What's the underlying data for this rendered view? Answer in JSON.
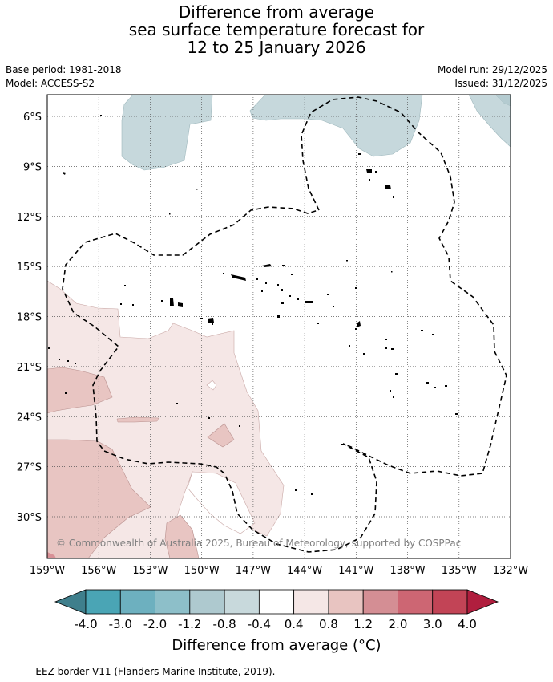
{
  "title": {
    "line1": "Difference from average",
    "line2": "sea surface temperature forecast for",
    "line3": "12 to 25 January 2026"
  },
  "meta": {
    "base_period": "Base period: 1981-2018",
    "model": "Model: ACCESS-S2",
    "model_run": "Model run: 29/12/2025",
    "issued": "Issued: 31/12/2025"
  },
  "map": {
    "lon_range": [
      -159,
      -132
    ],
    "lat_range": [
      -32.5,
      -4.7
    ],
    "lon_ticks": [
      -159,
      -156,
      -153,
      -150,
      -147,
      -144,
      -141,
      -138,
      -135,
      -132
    ],
    "lon_tick_labels": [
      "159°W",
      "156°W",
      "153°W",
      "150°W",
      "147°W",
      "144°W",
      "141°W",
      "138°W",
      "135°W",
      "132°W"
    ],
    "lat_ticks": [
      -6,
      -9,
      -12,
      -15,
      -18,
      -21,
      -24,
      -27,
      -30
    ],
    "lat_tick_labels": [
      "6°S",
      "9°S",
      "12°S",
      "15°S",
      "18°S",
      "21°S",
      "24°S",
      "27°S",
      "30°S"
    ],
    "grid": true,
    "copyright": "© Commonwealth of Australia 2025, Bureau of Meteorology, supported by COSPPac"
  },
  "colorbar": {
    "title": "Difference from average (°C)",
    "tick_labels": [
      "-4.0",
      "-3.0",
      "-2.0",
      "-1.2",
      "-0.8",
      "-0.4",
      "0.4",
      "0.8",
      "1.2",
      "2.0",
      "3.0",
      "4.0"
    ],
    "bins": [
      "#3f7f8c",
      "#4aa5b5",
      "#6db0bf",
      "#8dbfc9",
      "#aec9cf",
      "#c8d9dc",
      "#ffffff",
      "#f5e7e6",
      "#e8c4c1",
      "#d48e94",
      "#cd6673",
      "#c24456",
      "#b01e3e"
    ]
  },
  "footnote": "--  --  -- EEZ border V11 (Flanders Marine Institute, 2019)."
}
